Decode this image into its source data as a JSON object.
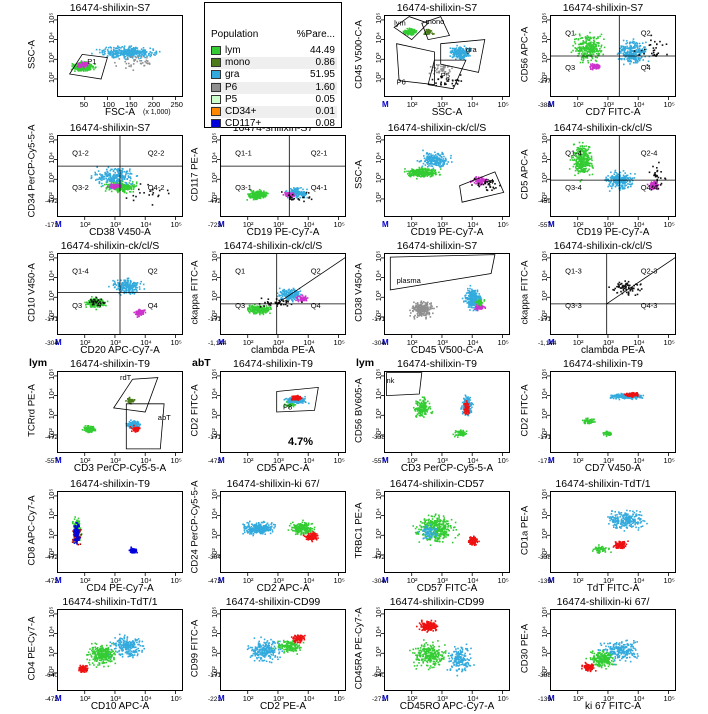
{
  "legend": {
    "header_population": "Population",
    "header_percent": "%Pare...",
    "rows": [
      {
        "name": "lym",
        "value": "44.49",
        "color": "#33cc33"
      },
      {
        "name": "mono",
        "value": "0.86",
        "color": "#4a7a1a"
      },
      {
        "name": "gra",
        "value": "51.95",
        "color": "#33aadd"
      },
      {
        "name": "P6",
        "value": "1.60",
        "color": "#8f8f8f"
      },
      {
        "name": "P5",
        "value": "0.05",
        "color": "#ccffcc"
      },
      {
        "name": "CD34+",
        "value": "0.01",
        "color": "#ff8800"
      },
      {
        "name": "CD117+",
        "value": "0.08",
        "color": "#0000dd"
      }
    ]
  },
  "plots": [
    {
      "title": "16474-shilixin-S7",
      "x": "FSC-A",
      "x_suffix": "(x 1,000)",
      "y": "SSC-A",
      "type": "linear",
      "xticks": [
        "50",
        "100",
        "150",
        "200",
        "250"
      ],
      "gates": [
        "P1"
      ]
    },
    null,
    {
      "title": "16474-shilixin-S7",
      "x": "SSC-A",
      "y": "CD45 V500-C-A",
      "type": "log",
      "gates": [
        "lym",
        "mono",
        "gra",
        "P6",
        "P5"
      ]
    },
    {
      "title": "16474-shilixin-S7",
      "x": "CD7 FITC-A",
      "y": "CD56 APC-A",
      "type": "log",
      "xmin": "-388",
      "ymin": "-277",
      "quads": [
        "Q1",
        "Q2",
        "Q3",
        "Q4"
      ]
    },
    {
      "title": "16474-shilixin-S7",
      "x": "CD38 V450-A",
      "y": "CD34 PerCP-Cy5-5-A",
      "type": "log",
      "xmin": "-171",
      "ymin": "-472",
      "quads": [
        "Q1-2",
        "Q2-2",
        "Q3-2",
        "Q4-2"
      ]
    },
    {
      "title": "16474-shilixin-S7",
      "x": "CD19 PE-Cy7-A",
      "y": "CD117 PE-A",
      "type": "log",
      "xmin": "-723",
      "ymin": "-472",
      "quads": [
        "Q1-1",
        "Q2-1",
        "Q3-1",
        "Q4-1"
      ]
    },
    {
      "title": "16474-shilixin-ck/cl/S",
      "x": "CD19 PE-Cy7-A",
      "y": "SSC-A",
      "type": "log",
      "gates": [
        "P4"
      ]
    },
    {
      "title": "16474-shilixin-ck/cl/S",
      "x": "CD19 PE-Cy7-A",
      "y": "CD5 APC-A",
      "type": "log",
      "xmin": "-557",
      "ymin": "-459",
      "quads": [
        "Q1-4",
        "Q2-4",
        "Q3-4",
        "Q4-4"
      ]
    },
    {
      "title": "16474-shilixin-ck/cl/S",
      "x": "CD20 APC-Cy7-A",
      "y": "CD10 V450-A",
      "type": "log",
      "xmin": "-304",
      "ymin": "-171",
      "quads": [
        "Q1-4",
        "Q2",
        "Q3",
        "Q4"
      ]
    },
    {
      "title": "16474-shilixin-ck/cl/S",
      "x": "clambda PE-A",
      "y": "ckappa FITC-A",
      "type": "log",
      "xmin": "-1,144",
      "ymin": "-171",
      "quads": [
        "Q1",
        "Q2",
        "Q3",
        "Q4"
      ]
    },
    {
      "title": "16474-shilixin-S7",
      "x": "CD45 V500-C-A",
      "y": "CD38 V450-A",
      "type": "log",
      "xmin": "-304",
      "ymin": "-171",
      "gates": [
        "plasma"
      ]
    },
    {
      "title": "16474-shilixin-ck/cl/S",
      "x": "clambda PE-A",
      "y": "ckappa FITC-A",
      "type": "log",
      "xmin": "-1,144",
      "ymin": "-171",
      "quads": [
        "Q1-3",
        "Q2-3",
        "Q3-3",
        "Q4-3"
      ]
    },
    {
      "title": "16474-shilixin-T9",
      "corner": "lym",
      "x": "CD3 PerCP-Cy5-5-A",
      "y": "TCRrd PE-A",
      "type": "log",
      "xmin": "-557",
      "ymin": "-472",
      "gates": [
        "rdT",
        "abT"
      ]
    },
    {
      "title": "16474-shilixin-T9",
      "corner": "abT",
      "x": "CD5 APC-A",
      "y": "CD2 FITC-A",
      "type": "log",
      "xmin": "-472",
      "ymin": "-171",
      "gates": [
        "P8"
      ],
      "percent": "4.7%"
    },
    {
      "title": "16474-shilixin-T9",
      "corner": "lym",
      "x": "CD3 PerCP-Cy5-5-A",
      "y": "CD56 BV605-A",
      "type": "log",
      "xmin": "-557",
      "ymin": "-338",
      "gates": [
        "nk"
      ]
    },
    {
      "title": "16474-shilixin-T9",
      "x": "CD7 V450-A",
      "y": "CD2 FITC-A",
      "type": "log",
      "xmin": "-171",
      "ymin": "-171"
    },
    {
      "title": "16474-shilixin-T9",
      "x": "CD4 PE-Cy7-A",
      "y": "CD8 APC-Cy7-A",
      "type": "log",
      "xmin": "-472",
      "ymin": "-472"
    },
    {
      "title": "16474-shilixin-ki 67/",
      "x": "CD2 APC-A",
      "y": "CD24 PerCP-Cy5-5-A",
      "type": "log",
      "xmin": "-472",
      "ymin": "-304"
    },
    {
      "title": "16474-shilixin-CD57",
      "x": "CD57 FITC-A",
      "y": "TRBC1 PE-A",
      "type": "log",
      "xmin": "-304",
      "ymin": "-472"
    },
    {
      "title": "16474-shilixin-TdT/1",
      "x": "TdT FITC-A",
      "y": "CD1a PE-A",
      "type": "log",
      "xmin": "-139",
      "ymin": "-338"
    },
    {
      "title": "16474-shilixin-TdT/1",
      "x": "CD10 APC-A",
      "y": "CD4 PE-Cy7-A",
      "type": "log",
      "xmin": "-472",
      "ymin": "-640"
    },
    {
      "title": "16474-shilixin-CD99",
      "x": "CD2 PE-A",
      "y": "CD99 FITC-A",
      "type": "log",
      "xmin": "-221",
      "ymin": "-171"
    },
    {
      "title": "16474-shilixin-CD99",
      "x": "CD45RO APC-Cy7-A",
      "y": "CD45RA PE-Cy7-A",
      "type": "log",
      "xmin": "-271",
      "ymin": "-640"
    },
    {
      "title": "16474-shilixin-ki 67/",
      "x": "ki 67 FITC-A",
      "y": "CD30 PE-A",
      "type": "log",
      "xmin": "-139",
      "ymin": "-388"
    }
  ],
  "log_ticks": [
    "10²",
    "10³",
    "10⁴",
    "10⁵"
  ],
  "m_badge": "M",
  "chart_data": {
    "type": "scatter",
    "legend": {
      "entries": [
        "lym",
        "mono",
        "gra",
        "P6",
        "P5",
        "CD34+",
        "CD117+"
      ],
      "percent_parent": [
        44.49,
        0.86,
        51.95,
        1.6,
        0.05,
        0.01,
        0.08
      ],
      "placement": "top-center"
    },
    "panels": 23,
    "axis_scale": "log (biexponential) except FSC-A/SSC-A linear in panel 1",
    "annotations": [
      "P8 4.7%"
    ]
  }
}
